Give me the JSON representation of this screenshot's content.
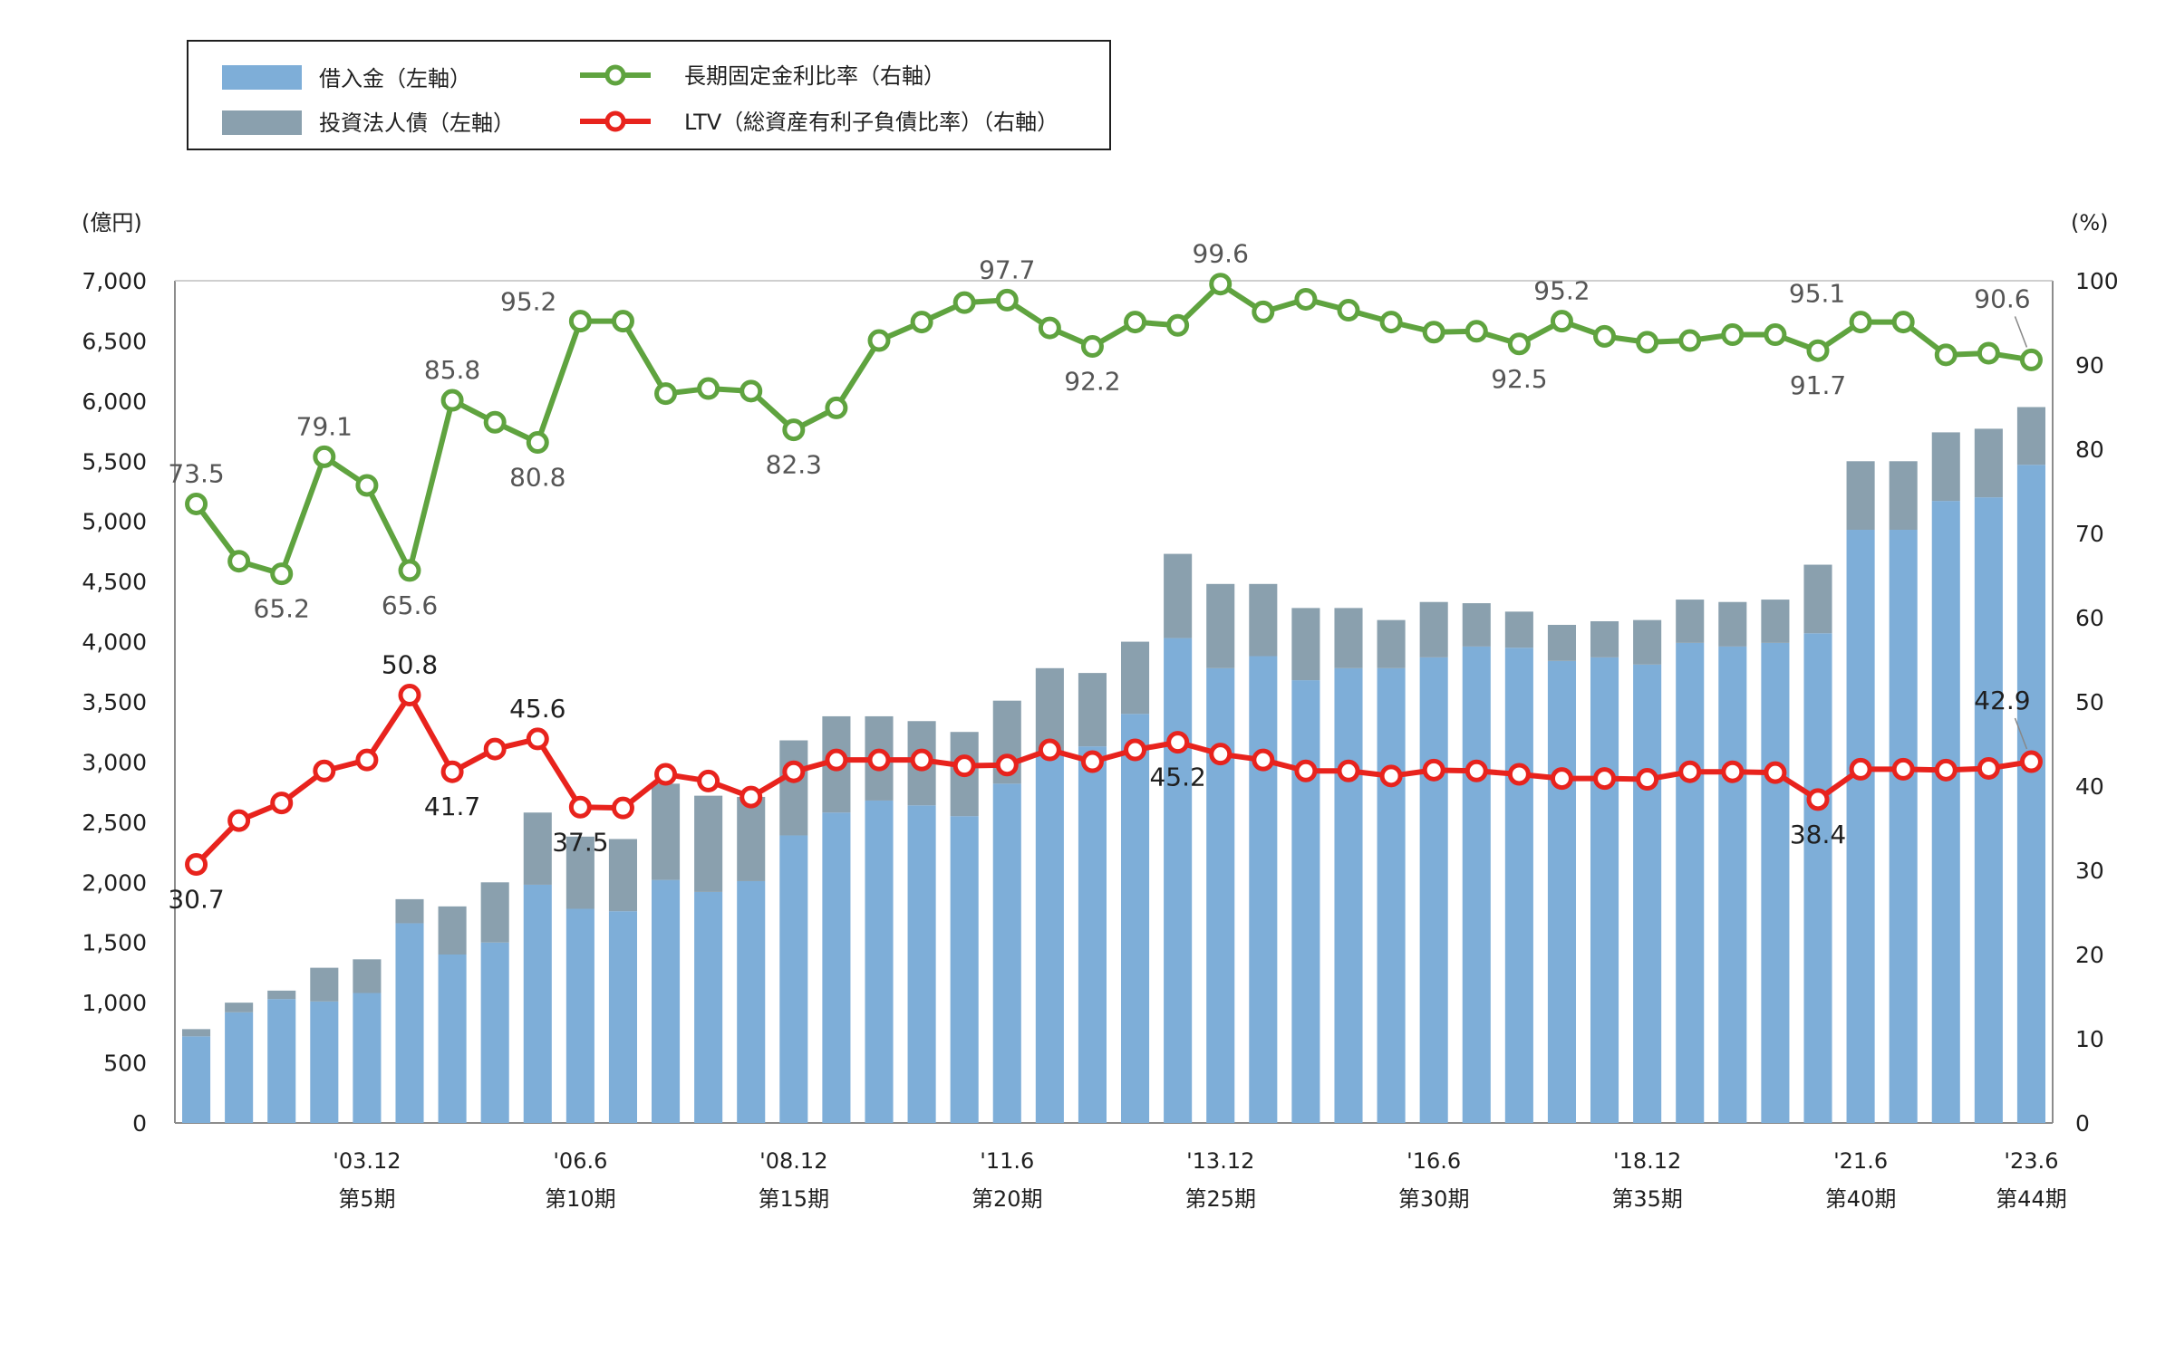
{
  "chart_data": {
    "type": "bar",
    "title": "",
    "legend": {
      "placement": "top-left",
      "items": [
        {
          "label": "借入金（左軸）",
          "kind": "bar",
          "series": "loans"
        },
        {
          "label": "投資法人債（左軸）",
          "kind": "bar",
          "series": "bonds"
        },
        {
          "label": "長期固定金利比率（右軸）",
          "kind": "line",
          "series": "fixed_rate"
        },
        {
          "label": "LTV（総資産有利子負債比率）（右軸）",
          "kind": "line",
          "series": "ltv"
        }
      ]
    },
    "y_left": {
      "unit": "(億円)",
      "min": 0,
      "max": 7000,
      "step": 500,
      "ticks": [
        "0",
        "500",
        "1,000",
        "1,500",
        "2,000",
        "2,500",
        "3,000",
        "3,500",
        "4,000",
        "4,500",
        "5,000",
        "5,500",
        "6,000",
        "6,500",
        "7,000"
      ]
    },
    "y_right": {
      "unit": "(%)",
      "min": 0,
      "max": 100,
      "step": 10,
      "ticks": [
        "0",
        "10",
        "20",
        "30",
        "40",
        "50",
        "60",
        "70",
        "80",
        "90",
        "100"
      ]
    },
    "x_labels": [
      {
        "index": 4,
        "date": "'03.12",
        "period": "第5期"
      },
      {
        "index": 9,
        "date": "'06.6",
        "period": "第10期"
      },
      {
        "index": 14,
        "date": "'08.12",
        "period": "第15期"
      },
      {
        "index": 19,
        "date": "'11.6",
        "period": "第20期"
      },
      {
        "index": 24,
        "date": "'13.12",
        "period": "第25期"
      },
      {
        "index": 29,
        "date": "'16.6",
        "period": "第30期"
      },
      {
        "index": 34,
        "date": "'18.12",
        "period": "第35期"
      },
      {
        "index": 39,
        "date": "'21.6",
        "period": "第40期"
      },
      {
        "index": 43,
        "date": "'23.6",
        "period": "第44期"
      }
    ],
    "series": [
      {
        "key": "loans",
        "color": "#7eaed8",
        "values": [
          720,
          920,
          1030,
          1010,
          1080,
          1660,
          1400,
          1500,
          1980,
          1780,
          1760,
          2020,
          1920,
          2010,
          2390,
          2580,
          2680,
          2640,
          2550,
          2820,
          3070,
          3130,
          3400,
          4030,
          3780,
          3880,
          3680,
          3780,
          3780,
          3870,
          3960,
          3950,
          3840,
          3870,
          3810,
          3990,
          3960,
          3990,
          4070,
          4930,
          4930,
          5170,
          5200,
          5470
        ]
      },
      {
        "key": "bonds",
        "color": "#8aa0ae",
        "values": [
          60,
          80,
          70,
          280,
          280,
          200,
          400,
          500,
          600,
          600,
          600,
          800,
          800,
          700,
          790,
          800,
          700,
          700,
          700,
          690,
          710,
          610,
          600,
          700,
          700,
          600,
          600,
          500,
          400,
          460,
          360,
          300,
          300,
          300,
          370,
          360,
          370,
          360,
          570,
          570,
          570,
          570,
          570,
          480
        ]
      },
      {
        "key": "fixed_rate",
        "color": "#5fa33f",
        "values": [
          73.5,
          66.7,
          65.2,
          79.1,
          75.7,
          65.6,
          85.8,
          83.2,
          80.8,
          95.2,
          95.2,
          86.6,
          87.2,
          86.9,
          82.3,
          84.9,
          92.9,
          95.1,
          97.4,
          97.7,
          94.4,
          92.2,
          95.1,
          94.7,
          99.6,
          96.3,
          97.8,
          96.5,
          95.1,
          93.9,
          94.0,
          92.5,
          95.2,
          93.4,
          92.7,
          92.9,
          93.6,
          93.6,
          91.7,
          95.1,
          95.1,
          91.2,
          91.4,
          90.6
        ]
      },
      {
        "key": "ltv",
        "color": "#e8231d",
        "values": [
          30.7,
          35.9,
          38.0,
          41.8,
          43.1,
          50.8,
          41.7,
          44.4,
          45.6,
          37.5,
          37.4,
          41.4,
          40.6,
          38.7,
          41.7,
          43.1,
          43.1,
          43.1,
          42.4,
          42.5,
          44.3,
          42.9,
          44.3,
          45.2,
          43.8,
          43.1,
          41.8,
          41.8,
          41.2,
          41.9,
          41.8,
          41.4,
          40.9,
          40.9,
          40.8,
          41.7,
          41.7,
          41.6,
          38.4,
          42.0,
          42.0,
          41.9,
          42.1,
          42.9
        ]
      }
    ],
    "annotations": [
      {
        "series": "fixed_rate",
        "index": 0,
        "text": "73.5",
        "pos": "above"
      },
      {
        "series": "fixed_rate",
        "index": 2,
        "text": "65.2",
        "pos": "below"
      },
      {
        "series": "fixed_rate",
        "index": 3,
        "text": "79.1",
        "pos": "above"
      },
      {
        "series": "fixed_rate",
        "index": 5,
        "text": "65.6",
        "pos": "below"
      },
      {
        "series": "fixed_rate",
        "index": 6,
        "text": "85.8",
        "pos": "above"
      },
      {
        "series": "fixed_rate",
        "index": 8,
        "text": "80.8",
        "pos": "below"
      },
      {
        "series": "fixed_rate",
        "index": 9,
        "text": "95.2",
        "pos": "left"
      },
      {
        "series": "fixed_rate",
        "index": 14,
        "text": "82.3",
        "pos": "below"
      },
      {
        "series": "fixed_rate",
        "index": 19,
        "text": "97.7",
        "pos": "above"
      },
      {
        "series": "fixed_rate",
        "index": 21,
        "text": "92.2",
        "pos": "below"
      },
      {
        "series": "fixed_rate",
        "index": 24,
        "text": "99.6",
        "pos": "above"
      },
      {
        "series": "fixed_rate",
        "index": 31,
        "text": "92.5",
        "pos": "below"
      },
      {
        "series": "fixed_rate",
        "index": 32,
        "text": "95.2",
        "pos": "above"
      },
      {
        "series": "fixed_rate",
        "index": 38,
        "text": "91.7",
        "pos": "below"
      },
      {
        "series": "fixed_rate",
        "index": 39,
        "text": "95.1",
        "pos": "above-left"
      },
      {
        "series": "fixed_rate",
        "index": 43,
        "text": "90.6",
        "pos": "leader"
      },
      {
        "series": "ltv",
        "index": 0,
        "text": "30.7",
        "pos": "below"
      },
      {
        "series": "ltv",
        "index": 5,
        "text": "50.8",
        "pos": "above"
      },
      {
        "series": "ltv",
        "index": 6,
        "text": "41.7",
        "pos": "below"
      },
      {
        "series": "ltv",
        "index": 8,
        "text": "45.6",
        "pos": "above"
      },
      {
        "series": "ltv",
        "index": 9,
        "text": "37.5",
        "pos": "below"
      },
      {
        "series": "ltv",
        "index": 23,
        "text": "45.2",
        "pos": "below"
      },
      {
        "series": "ltv",
        "index": 38,
        "text": "38.4",
        "pos": "below"
      },
      {
        "series": "ltv",
        "index": 43,
        "text": "42.9",
        "pos": "leader"
      }
    ],
    "grid": false
  }
}
